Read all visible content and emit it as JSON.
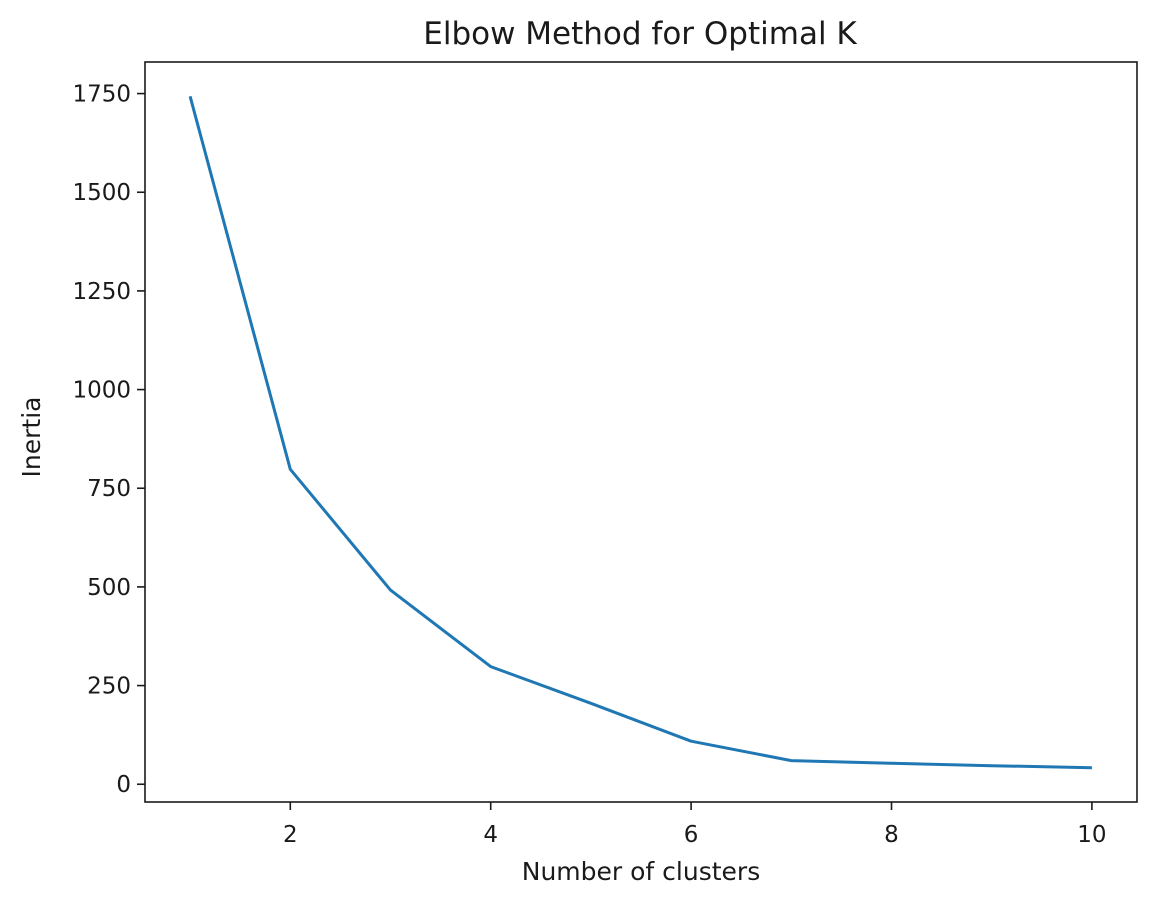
{
  "chart_data": {
    "type": "line",
    "title": "Elbow Method for Optimal K",
    "xlabel": "Number of clusters",
    "ylabel": "Inertia",
    "xlim": [
      0.55,
      10.45
    ],
    "ylim": [
      -45,
      1830
    ],
    "xticks": [
      2,
      4,
      6,
      8,
      10
    ],
    "xtick_labels": [
      "2",
      "4",
      "6",
      "8",
      "10"
    ],
    "yticks": [
      0,
      250,
      500,
      750,
      1000,
      1250,
      1500,
      1750
    ],
    "ytick_labels": [
      "0",
      "250",
      "500",
      "750",
      "1000",
      "1250",
      "1500",
      "1750"
    ],
    "grid": false,
    "legend": "none",
    "series": [
      {
        "color": "#1f77b4",
        "x": [
          1,
          2,
          3,
          4,
          5,
          6,
          7,
          8,
          9,
          10
        ],
        "y": [
          1743,
          798,
          492,
          298,
          205,
          109,
          60,
          53,
          47,
          42
        ]
      }
    ]
  }
}
